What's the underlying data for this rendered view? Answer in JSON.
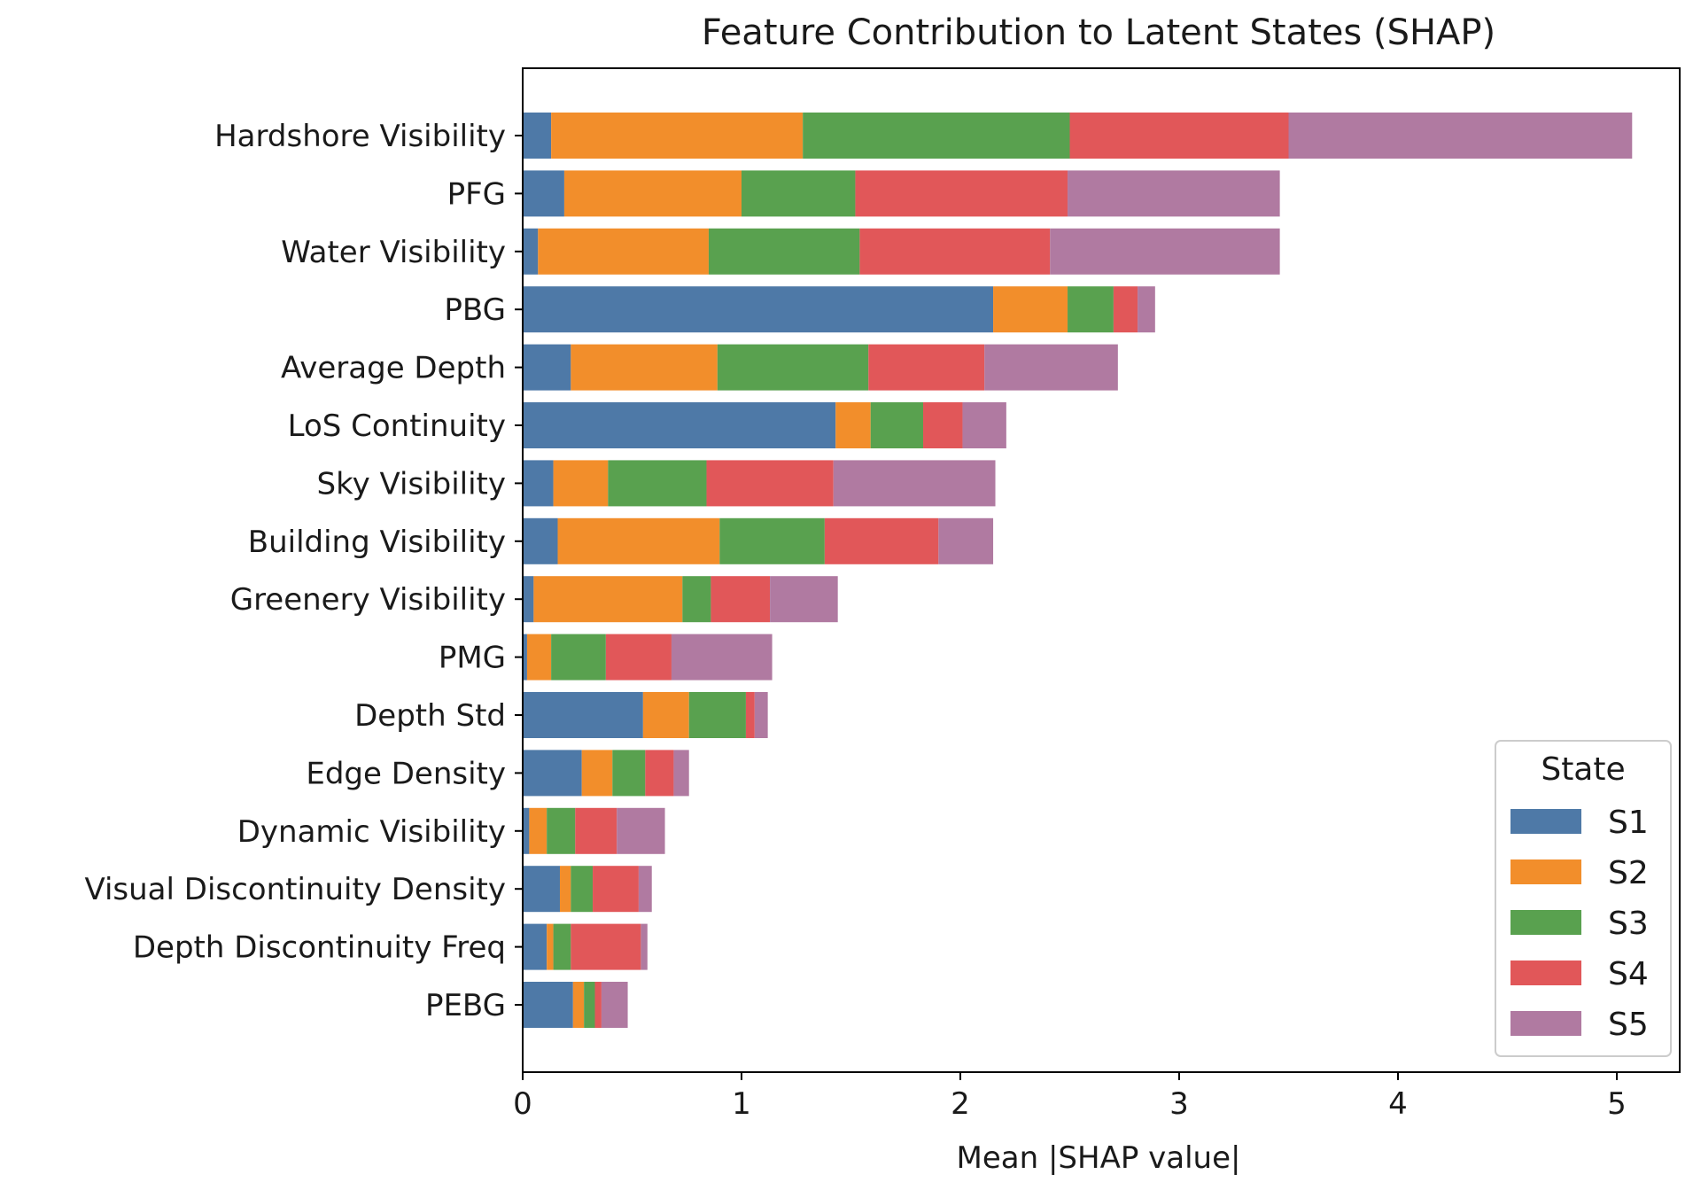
{
  "chart_data": {
    "type": "bar",
    "orientation": "horizontal",
    "stacked": true,
    "title": "Feature Contribution to Latent States (SHAP)",
    "xlabel": "Mean |SHAP value|",
    "ylabel": "",
    "xlim": [
      0,
      5.26
    ],
    "xticks": [
      "0",
      "1",
      "2",
      "3",
      "4",
      "5"
    ],
    "grid": false,
    "legend": {
      "title": "State",
      "placement": "lower-right"
    },
    "categories": [
      "Hardshore Visibility",
      "PFG",
      "Water Visibility",
      "PBG",
      "Average Depth",
      "LoS Continuity",
      "Sky Visibility",
      "Building Visibility",
      "Greenery Visibility",
      "PMG",
      "Depth Std",
      "Edge Density",
      "Dynamic Visibility",
      "Visual Discontinuity Density",
      "Depth Discontinuity Freq",
      "PEBG"
    ],
    "series": [
      {
        "name": "S1",
        "color": "#4e79a7",
        "values": [
          0.13,
          0.19,
          0.07,
          2.15,
          0.22,
          1.43,
          0.14,
          0.16,
          0.05,
          0.02,
          0.55,
          0.27,
          0.03,
          0.17,
          0.11,
          0.23
        ]
      },
      {
        "name": "S2",
        "color": "#f28e2b",
        "values": [
          1.15,
          0.81,
          0.78,
          0.34,
          0.67,
          0.16,
          0.25,
          0.74,
          0.68,
          0.11,
          0.21,
          0.14,
          0.08,
          0.05,
          0.03,
          0.05
        ]
      },
      {
        "name": "S3",
        "color": "#59a14f",
        "values": [
          1.22,
          0.52,
          0.69,
          0.21,
          0.69,
          0.24,
          0.45,
          0.48,
          0.13,
          0.25,
          0.26,
          0.15,
          0.13,
          0.1,
          0.08,
          0.05
        ]
      },
      {
        "name": "S4",
        "color": "#e15759",
        "values": [
          1.0,
          0.97,
          0.87,
          0.11,
          0.53,
          0.18,
          0.58,
          0.52,
          0.27,
          0.3,
          0.04,
          0.13,
          0.19,
          0.21,
          0.32,
          0.03
        ]
      },
      {
        "name": "S5",
        "color": "#b07aa1",
        "values": [
          1.57,
          0.97,
          1.05,
          0.08,
          0.61,
          0.2,
          0.74,
          0.25,
          0.31,
          0.46,
          0.06,
          0.07,
          0.22,
          0.06,
          0.03,
          0.12
        ]
      }
    ]
  }
}
